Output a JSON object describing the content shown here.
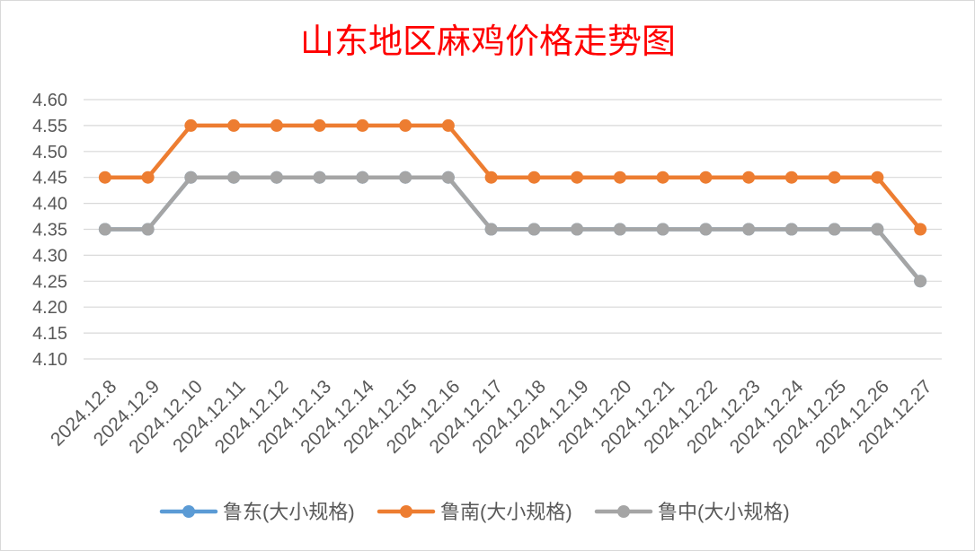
{
  "chart_data": {
    "type": "line",
    "title": "山东地区麻鸡价格走势图",
    "title_color": "#FF0000",
    "text_color": "#595959",
    "grid_color": "#D9D9D9",
    "grid": true,
    "legend": "bottom",
    "xlabel": "",
    "ylabel": "",
    "ylim": [
      4.1,
      4.6
    ],
    "yticks": [
      "4.10",
      "4.15",
      "4.20",
      "4.25",
      "4.30",
      "4.35",
      "4.40",
      "4.45",
      "4.50",
      "4.55",
      "4.60"
    ],
    "categories": [
      "2024.12.8",
      "2024.12.9",
      "2024.12.10",
      "2024.12.11",
      "2024.12.12",
      "2024.12.13",
      "2024.12.14",
      "2024.12.15",
      "2024.12.16",
      "2024.12.17",
      "2024.12.18",
      "2024.12.19",
      "2024.12.20",
      "2024.12.21",
      "2024.12.22",
      "2024.12.23",
      "2024.12.24",
      "2024.12.25",
      "2024.12.26",
      "2024.12.27"
    ],
    "series": [
      {
        "name": "鲁东(大小规格)",
        "color": "#5B9BD5",
        "values": [
          4.35,
          4.35,
          4.45,
          4.45,
          4.45,
          4.45,
          4.45,
          4.45,
          4.45,
          4.35,
          4.35,
          4.35,
          4.35,
          4.35,
          4.35,
          4.35,
          4.35,
          4.35,
          4.35,
          4.25
        ]
      },
      {
        "name": "鲁南(大小规格)",
        "color": "#ED7D31",
        "values": [
          4.45,
          4.45,
          4.55,
          4.55,
          4.55,
          4.55,
          4.55,
          4.55,
          4.55,
          4.45,
          4.45,
          4.45,
          4.45,
          4.45,
          4.45,
          4.45,
          4.45,
          4.45,
          4.45,
          4.35
        ]
      },
      {
        "name": "鲁中(大小规格)",
        "color": "#A5A5A5",
        "values": [
          4.35,
          4.35,
          4.45,
          4.45,
          4.45,
          4.45,
          4.45,
          4.45,
          4.45,
          4.35,
          4.35,
          4.35,
          4.35,
          4.35,
          4.35,
          4.35,
          4.35,
          4.35,
          4.35,
          4.25
        ]
      }
    ]
  }
}
